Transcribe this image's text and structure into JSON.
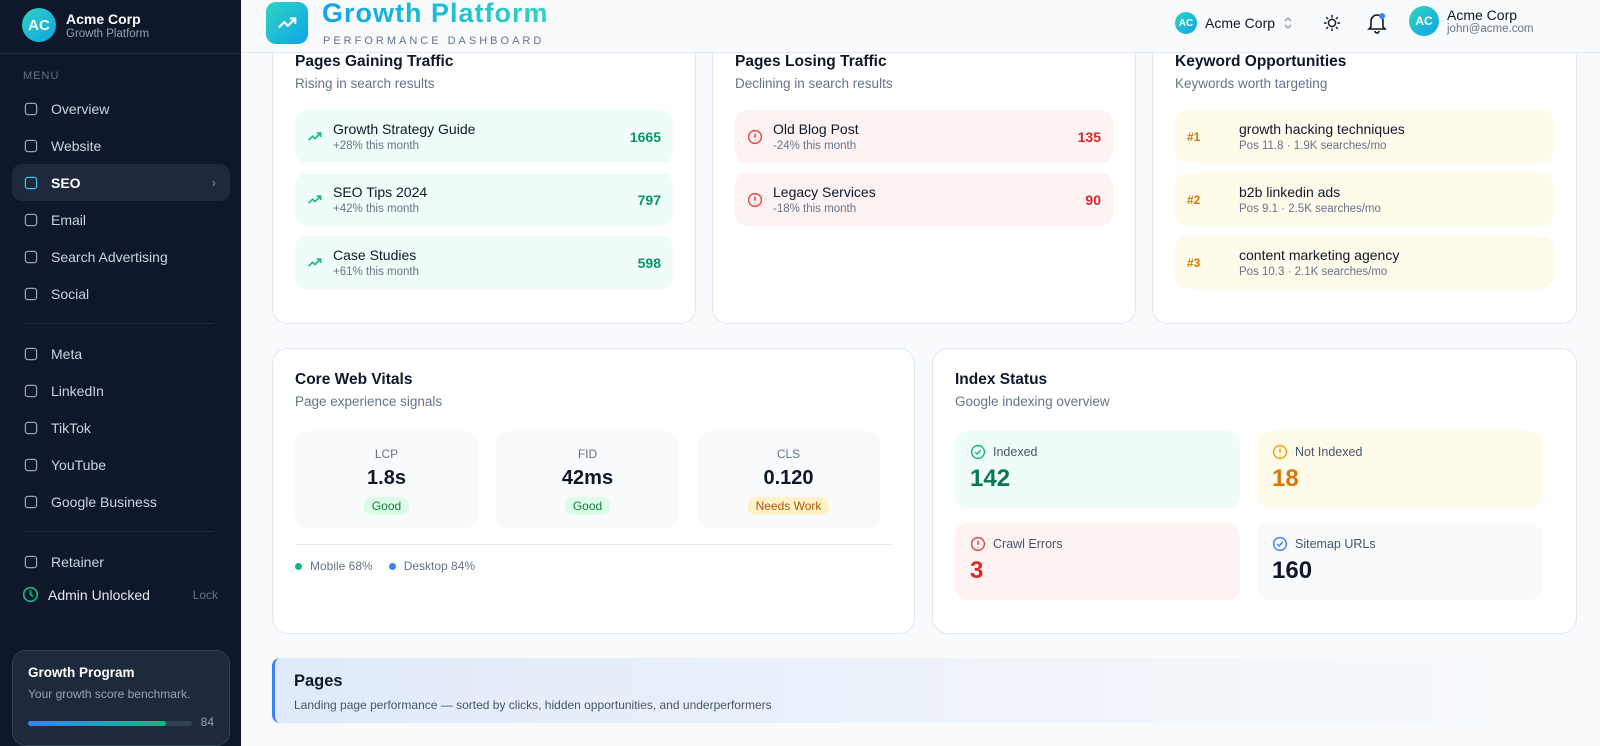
{
  "sidebar": {
    "brand": {
      "initials": "AC",
      "name": "Acme Corp",
      "subtitle": "Growth Platform"
    },
    "menu_label": "MENU",
    "nav_groups": [
      [
        {
          "label": "Overview"
        },
        {
          "label": "Website"
        },
        {
          "label": "SEO",
          "active": true
        },
        {
          "label": "Email"
        },
        {
          "label": "Search Advertising"
        },
        {
          "label": "Social"
        }
      ],
      [
        {
          "label": "Meta"
        },
        {
          "label": "LinkedIn"
        },
        {
          "label": "TikTok"
        },
        {
          "label": "YouTube"
        },
        {
          "label": "Google Business"
        }
      ],
      [
        {
          "label": "Retainer"
        }
      ]
    ],
    "admin": {
      "label": "Admin Unlocked",
      "action": "Lock"
    },
    "program": {
      "title": "Growth Program",
      "text": "Your growth score benchmark.",
      "score": 84
    }
  },
  "header": {
    "title": "Growth Platform",
    "subtitle": "PERFORMANCE DASHBOARD",
    "workspace": {
      "initials": "AC",
      "name": "Acme Corp"
    },
    "user": {
      "initials": "AC",
      "name": "Acme Corp",
      "email": "john@acme.com"
    }
  },
  "gaining": {
    "title": "Pages Gaining Traffic",
    "subtitle": "Rising in search results",
    "items": [
      {
        "name": "Growth Strategy Guide",
        "change": "+28% this month",
        "value": 1665
      },
      {
        "name": "SEO Tips 2024",
        "change": "+42% this month",
        "value": 797
      },
      {
        "name": "Case Studies",
        "change": "+61% this month",
        "value": 598
      }
    ]
  },
  "losing": {
    "title": "Pages Losing Traffic",
    "subtitle": "Declining in search results",
    "items": [
      {
        "name": "Old Blog Post",
        "change": "-24% this month",
        "value": 135
      },
      {
        "name": "Legacy Services",
        "change": "-18% this month",
        "value": 90
      }
    ]
  },
  "keywords": {
    "title": "Keyword Opportunities",
    "subtitle": "Keywords worth targeting",
    "items": [
      {
        "rank": "#1",
        "keyword": "growth hacking techniques",
        "detail": "Pos 11.8 · 1.9K searches/mo"
      },
      {
        "rank": "#2",
        "keyword": "b2b linkedin ads",
        "detail": "Pos 9.1 · 2.5K searches/mo"
      },
      {
        "rank": "#3",
        "keyword": "content marketing agency",
        "detail": "Pos 10.3 · 2.1K searches/mo"
      }
    ]
  },
  "vitals": {
    "title": "Core Web Vitals",
    "subtitle": "Page experience signals",
    "metrics": [
      {
        "label": "LCP",
        "value": "1.8s",
        "status": "Good",
        "tone": "good"
      },
      {
        "label": "FID",
        "value": "42ms",
        "status": "Good",
        "tone": "good"
      },
      {
        "label": "CLS",
        "value": "0.120",
        "status": "Needs Work",
        "tone": "warn"
      }
    ],
    "legend": [
      {
        "label": "Mobile 68%",
        "color": "#10b981"
      },
      {
        "label": "Desktop 84%",
        "color": "#3b82f6"
      }
    ]
  },
  "index": {
    "title": "Index Status",
    "subtitle": "Google indexing overview",
    "items": [
      {
        "label": "Indexed",
        "value": 142,
        "tone": "green"
      },
      {
        "label": "Not Indexed",
        "value": 18,
        "tone": "amber"
      },
      {
        "label": "Crawl Errors",
        "value": 3,
        "tone": "red"
      },
      {
        "label": "Sitemap URLs",
        "value": 160,
        "tone": "blue"
      }
    ]
  },
  "pages": {
    "title": "Pages",
    "subtitle": "Landing page performance — sorted by clicks, hidden opportunities, and underperformers"
  }
}
